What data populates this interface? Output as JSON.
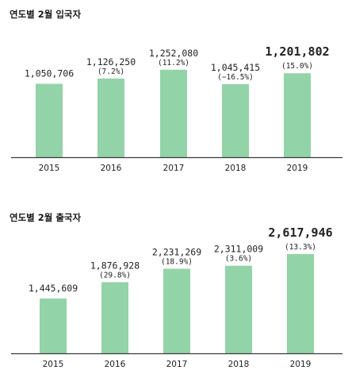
{
  "chart_data": [
    {
      "type": "bar",
      "title": "연도별 2월 입국자",
      "categories": [
        "2015",
        "2016",
        "2017",
        "2018",
        "2019"
      ],
      "values": [
        1050706,
        1126250,
        1252080,
        1045415,
        1201802
      ],
      "value_labels": [
        "1,050,706",
        "1,126,250",
        "1,252,080",
        "1,045,415",
        "1,201,802"
      ],
      "change_labels": [
        "",
        "(7.2%)",
        "(11.2%)",
        "(−16.5%)",
        "(15.0%)"
      ],
      "highlight_index": 4,
      "bar_color": "#93d3a8",
      "axis_color": "#3a3a3a",
      "grid": false,
      "legend": "none"
    },
    {
      "type": "bar",
      "title": "연도별 2월 출국자",
      "categories": [
        "2015",
        "2016",
        "2017",
        "2018",
        "2019"
      ],
      "values": [
        1445609,
        1876928,
        2231269,
        2311009,
        2617946
      ],
      "value_labels": [
        "1,445,609",
        "1,876,928",
        "2,231,269",
        "2,311,009",
        "2,617,946"
      ],
      "change_labels": [
        "",
        "(29.8%)",
        "(18.9%)",
        "(3.6%)",
        "(13.3%)"
      ],
      "highlight_index": 4,
      "bar_color": "#93d3a8",
      "axis_color": "#3a3a3a",
      "grid": false,
      "legend": "none"
    }
  ]
}
